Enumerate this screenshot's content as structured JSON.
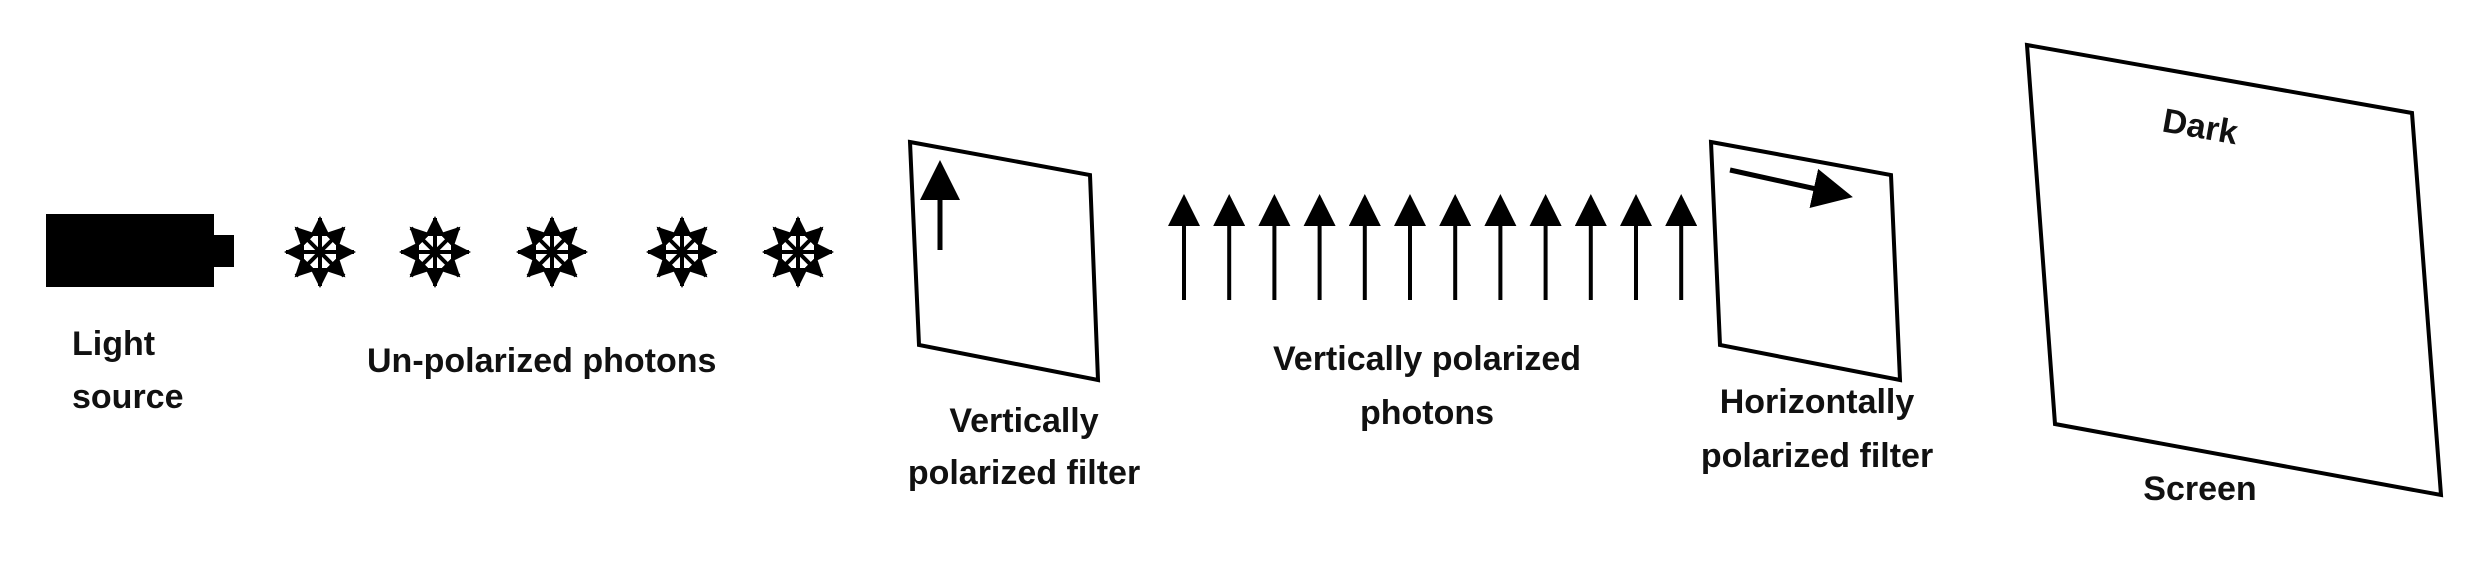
{
  "labels": {
    "light_source_line1": "Light",
    "light_source_line2": "source",
    "unpolarized_photons": "Un-polarized photons",
    "vertical_filter_line1": "Vertically",
    "vertical_filter_line2": "polarized filter",
    "vertical_photons_line1": "Vertically polarized",
    "vertical_photons_line2": "photons",
    "horizontal_filter_line1": "Horizontally",
    "horizontal_filter_line2": "polarized filter",
    "screen_state": "Dark",
    "screen": "Screen"
  },
  "counts": {
    "unpolarized_photons": 5,
    "vertically_polarized_photons": 12
  },
  "colors": {
    "ink": "#000000"
  }
}
